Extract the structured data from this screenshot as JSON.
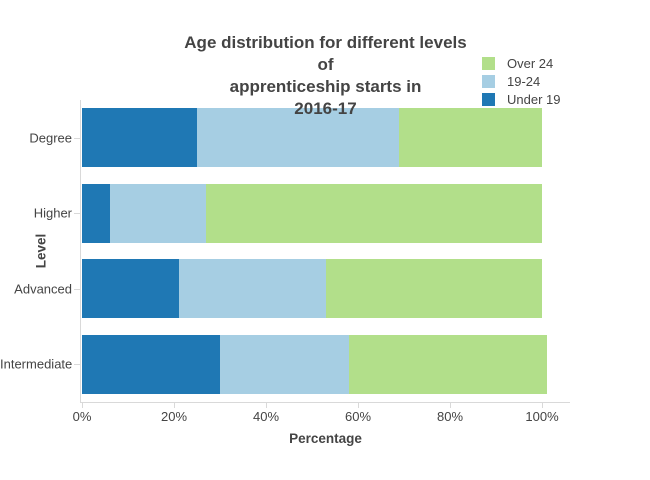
{
  "title": {
    "lines": [
      "Age distribution for different levels",
      "of",
      "apprenticeship starts in",
      "2016-17"
    ]
  },
  "legend": {
    "position": "top-right",
    "items": [
      {
        "label": "Over 24",
        "color": "#b2df8a"
      },
      {
        "label": "19-24",
        "color": "#a6cee3"
      },
      {
        "label": "Under 19",
        "color": "#1f78b4"
      }
    ]
  },
  "axes": {
    "x": {
      "title": "Percentage",
      "tick_labels": [
        "0%",
        "20%",
        "40%",
        "60%",
        "80%",
        "100%"
      ],
      "tick_values": [
        0,
        20,
        40,
        60,
        80,
        100
      ]
    },
    "y": {
      "title": "Level",
      "categories": [
        "Degree",
        "Higher",
        "Advanced",
        "Intermediate"
      ]
    }
  },
  "chart_data": {
    "type": "bar",
    "orientation": "horizontal",
    "stacked": true,
    "title": "Age distribution for different levels of apprenticeship starts in 2016-17",
    "xlabel": "Percentage",
    "ylabel": "Level",
    "categories": [
      "Degree",
      "Higher",
      "Advanced",
      "Intermediate"
    ],
    "series": [
      {
        "name": "Under 19",
        "color": "#1f78b4",
        "values": [
          25,
          6,
          21,
          30
        ]
      },
      {
        "name": "19-24",
        "color": "#a6cee3",
        "values": [
          44,
          21,
          32,
          28
        ]
      },
      {
        "name": "Over 24",
        "color": "#b2df8a",
        "values": [
          31,
          73,
          47,
          43
        ]
      }
    ],
    "xlim": [
      0,
      106
    ],
    "grid": false,
    "legend_position": "top-right"
  },
  "colors": {
    "text": "#444444",
    "axis_line": "#d9d9d9",
    "background": "#ffffff"
  }
}
